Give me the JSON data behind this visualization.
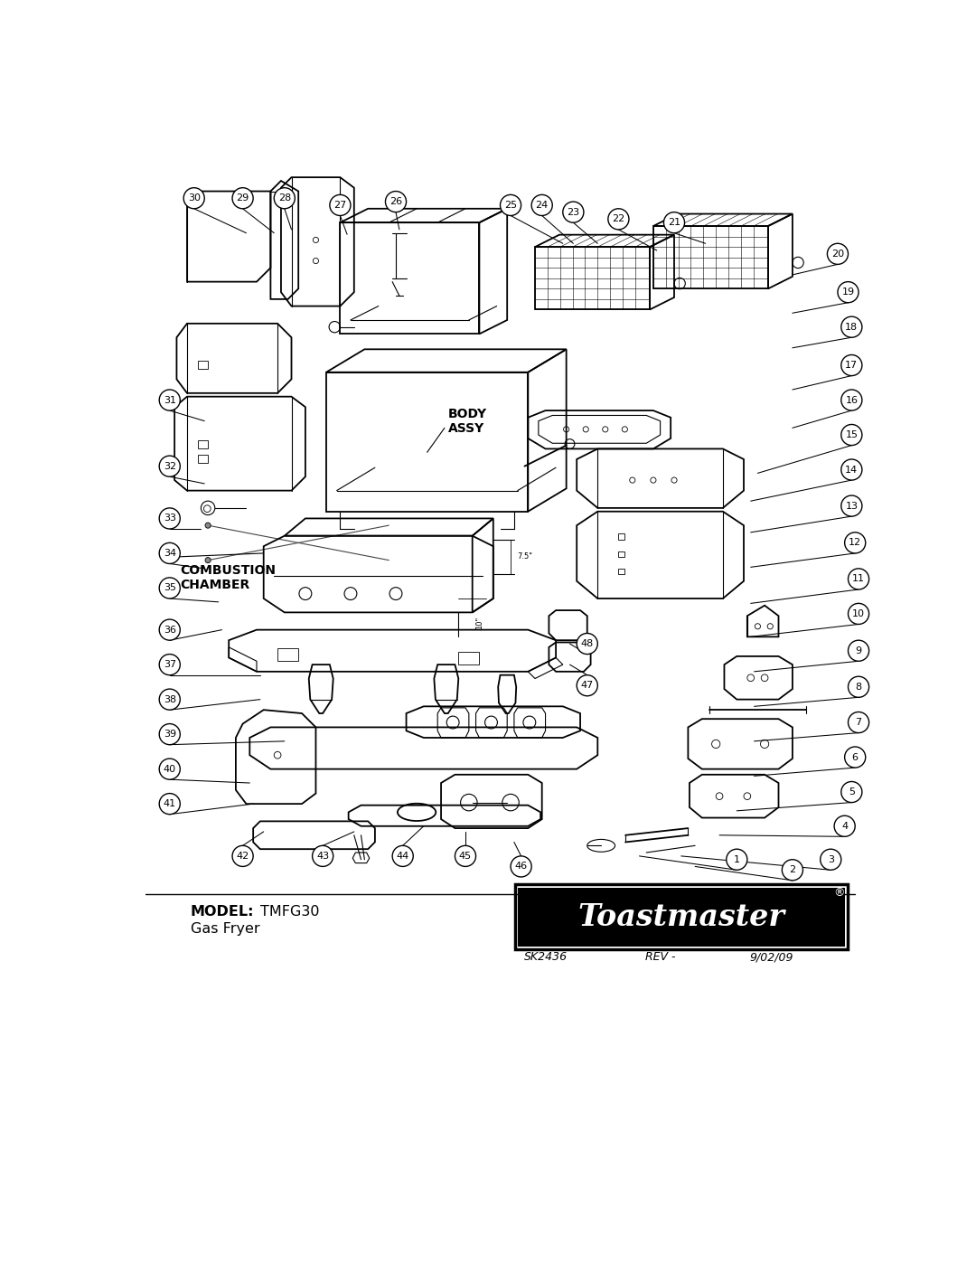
{
  "title": "Combustion Chamber Body Assy",
  "model_bold": "MODEL:",
  "model_text": "TMFG30",
  "model_sub": "Gas Fryer",
  "logo_text": "Toastmaster",
  "logo_reg": "®",
  "footer_sk": "SK2436",
  "footer_rev": "REV -",
  "footer_date": "9/02/09",
  "bg_color": "#ffffff",
  "fg_color": "#000000",
  "body_assy_label": "BODY\nASSY",
  "combustion_label": "COMBUSTION\nCHAMBER",
  "fig_width": 10.8,
  "fig_height": 13.97,
  "dpi": 100,
  "circled_parts": [
    [
      100,
      1330,
      30
    ],
    [
      170,
      1330,
      29
    ],
    [
      230,
      1330,
      28
    ],
    [
      310,
      1320,
      27
    ],
    [
      390,
      1325,
      26
    ],
    [
      555,
      1320,
      25
    ],
    [
      600,
      1320,
      24
    ],
    [
      645,
      1310,
      23
    ],
    [
      710,
      1300,
      22
    ],
    [
      790,
      1295,
      21
    ],
    [
      1025,
      1250,
      20
    ],
    [
      1040,
      1195,
      19
    ],
    [
      1045,
      1145,
      18
    ],
    [
      1045,
      1090,
      17
    ],
    [
      1045,
      1040,
      16
    ],
    [
      1045,
      990,
      15
    ],
    [
      1045,
      940,
      14
    ],
    [
      1045,
      888,
      13
    ],
    [
      1050,
      835,
      12
    ],
    [
      1055,
      783,
      11
    ],
    [
      1055,
      733,
      10
    ],
    [
      1055,
      680,
      9
    ],
    [
      1055,
      628,
      8
    ],
    [
      1055,
      577,
      7
    ],
    [
      1050,
      527,
      6
    ],
    [
      1045,
      477,
      5
    ],
    [
      1035,
      428,
      4
    ],
    [
      1015,
      380,
      3
    ],
    [
      960,
      365,
      2
    ],
    [
      880,
      380,
      1
    ],
    [
      65,
      1040,
      31
    ],
    [
      65,
      945,
      32
    ],
    [
      65,
      870,
      33
    ],
    [
      65,
      820,
      34
    ],
    [
      65,
      770,
      35
    ],
    [
      65,
      710,
      36
    ],
    [
      65,
      660,
      37
    ],
    [
      65,
      610,
      38
    ],
    [
      65,
      560,
      39
    ],
    [
      65,
      510,
      40
    ],
    [
      65,
      460,
      41
    ],
    [
      170,
      385,
      42
    ],
    [
      285,
      385,
      43
    ],
    [
      400,
      385,
      44
    ],
    [
      490,
      385,
      45
    ],
    [
      570,
      370,
      46
    ],
    [
      665,
      630,
      47
    ],
    [
      665,
      690,
      48
    ]
  ],
  "leader_lines": [
    [
      100,
      1315,
      175,
      1280
    ],
    [
      170,
      1315,
      215,
      1280
    ],
    [
      230,
      1315,
      240,
      1285
    ],
    [
      310,
      1305,
      320,
      1278
    ],
    [
      390,
      1310,
      395,
      1285
    ],
    [
      555,
      1305,
      630,
      1265
    ],
    [
      600,
      1305,
      645,
      1265
    ],
    [
      645,
      1295,
      680,
      1265
    ],
    [
      710,
      1285,
      765,
      1255
    ],
    [
      790,
      1280,
      835,
      1265
    ],
    [
      1025,
      1235,
      960,
      1220
    ],
    [
      1040,
      1180,
      960,
      1165
    ],
    [
      1045,
      1130,
      960,
      1115
    ],
    [
      1045,
      1075,
      960,
      1055
    ],
    [
      1045,
      1025,
      960,
      1000
    ],
    [
      1045,
      975,
      910,
      935
    ],
    [
      1045,
      925,
      900,
      895
    ],
    [
      1045,
      873,
      900,
      850
    ],
    [
      1050,
      820,
      900,
      800
    ],
    [
      1055,
      768,
      900,
      748
    ],
    [
      1055,
      718,
      900,
      700
    ],
    [
      1055,
      665,
      905,
      650
    ],
    [
      1055,
      613,
      905,
      600
    ],
    [
      1055,
      562,
      905,
      550
    ],
    [
      1050,
      512,
      905,
      500
    ],
    [
      1045,
      462,
      880,
      450
    ],
    [
      1035,
      413,
      855,
      415
    ],
    [
      1015,
      365,
      800,
      385
    ],
    [
      960,
      350,
      820,
      370
    ],
    [
      880,
      365,
      740,
      385
    ],
    [
      65,
      1025,
      115,
      1010
    ],
    [
      65,
      930,
      115,
      920
    ],
    [
      65,
      855,
      110,
      855
    ],
    [
      65,
      805,
      115,
      798
    ],
    [
      65,
      755,
      135,
      750
    ],
    [
      65,
      695,
      140,
      710
    ],
    [
      65,
      645,
      195,
      645
    ],
    [
      65,
      595,
      195,
      610
    ],
    [
      65,
      545,
      230,
      550
    ],
    [
      65,
      495,
      180,
      490
    ],
    [
      65,
      445,
      185,
      460
    ],
    [
      170,
      400,
      200,
      420
    ],
    [
      285,
      400,
      330,
      420
    ],
    [
      400,
      400,
      430,
      428
    ],
    [
      490,
      400,
      490,
      420
    ],
    [
      570,
      385,
      560,
      405
    ],
    [
      665,
      645,
      640,
      660
    ],
    [
      665,
      675,
      640,
      690
    ]
  ]
}
